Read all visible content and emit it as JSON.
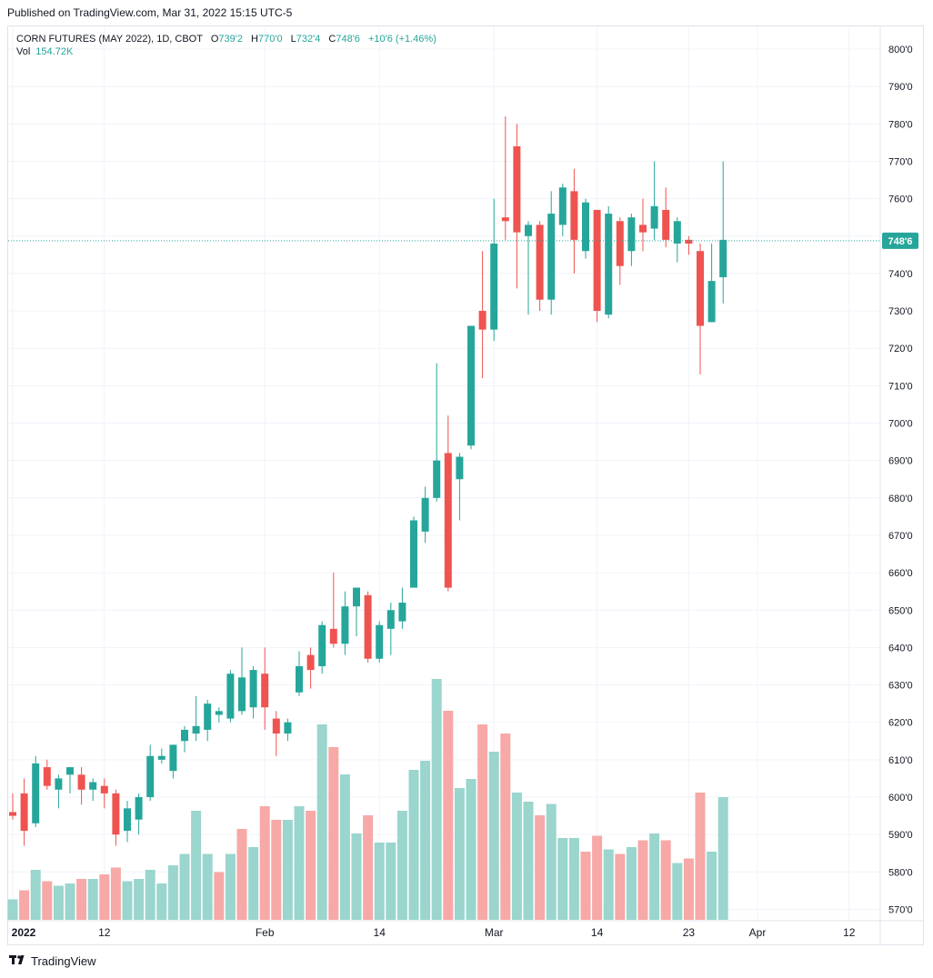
{
  "published": "Published on TradingView.com, Mar 31, 2022 15:15 UTC-5",
  "legend": {
    "symbol": "CORN FUTURES (MAY 2022), 1D, CBOT",
    "o_label": "O",
    "o_value": "739'2",
    "h_label": "H",
    "h_value": "770'0",
    "l_label": "L",
    "l_value": "732'4",
    "c_label": "C",
    "c_value": "748'6",
    "change": "+10'6 (+1.46%)",
    "vol_label": "Vol",
    "vol_value": "154.72K"
  },
  "footer": {
    "brand": "TradingView",
    "logo_icon": "tradingview-logo-icon"
  },
  "colors": {
    "up": "#26a69a",
    "down": "#ef5350",
    "vol_up": "#9ad5ce",
    "vol_down": "#f6a9a7",
    "grid": "#f0f3fa",
    "last": "#26a69a"
  },
  "chart_data": {
    "type": "candlestick",
    "y_unit": "cents/bushel",
    "ylim": [
      565,
      805
    ],
    "y_ticks": [
      {
        "v": 570,
        "label": "570'0"
      },
      {
        "v": 580,
        "label": "580'0"
      },
      {
        "v": 590,
        "label": "590'0"
      },
      {
        "v": 600,
        "label": "600'0"
      },
      {
        "v": 610,
        "label": "610'0"
      },
      {
        "v": 620,
        "label": "620'0"
      },
      {
        "v": 630,
        "label": "630'0"
      },
      {
        "v": 640,
        "label": "640'0"
      },
      {
        "v": 650,
        "label": "650'0"
      },
      {
        "v": 660,
        "label": "660'0"
      },
      {
        "v": 670,
        "label": "670'0"
      },
      {
        "v": 680,
        "label": "680'0"
      },
      {
        "v": 690,
        "label": "690'0"
      },
      {
        "v": 700,
        "label": "700'0"
      },
      {
        "v": 710,
        "label": "710'0"
      },
      {
        "v": 720,
        "label": "720'0"
      },
      {
        "v": 730,
        "label": "730'0"
      },
      {
        "v": 740,
        "label": "740'0"
      },
      {
        "v": 750,
        "label": "750'0"
      },
      {
        "v": 760,
        "label": "760'0"
      },
      {
        "v": 770,
        "label": "770'0"
      },
      {
        "v": 780,
        "label": "780'0"
      },
      {
        "v": 790,
        "label": "790'0"
      },
      {
        "v": 800,
        "label": "800'0"
      }
    ],
    "x_ticks": [
      {
        "i": 0,
        "label": "2022",
        "bold": true
      },
      {
        "i": 8,
        "label": "12"
      },
      {
        "i": 22,
        "label": "Feb"
      },
      {
        "i": 32,
        "label": "14"
      },
      {
        "i": 42,
        "label": "Mar"
      },
      {
        "i": 51,
        "label": "14"
      },
      {
        "i": 59,
        "label": "23"
      },
      {
        "i": 65,
        "label": "Apr"
      },
      {
        "i": 73,
        "label": "12"
      }
    ],
    "last_price": 748.75,
    "last_price_label": "748'6",
    "candles": [
      {
        "o": 596,
        "h": 601,
        "l": 594,
        "c": 595
      },
      {
        "o": 601,
        "h": 605,
        "l": 587,
        "c": 591
      },
      {
        "o": 593,
        "h": 611,
        "l": 592,
        "c": 609
      },
      {
        "o": 608,
        "h": 610,
        "l": 602,
        "c": 603
      },
      {
        "o": 602,
        "h": 606,
        "l": 597,
        "c": 605
      },
      {
        "o": 606,
        "h": 608,
        "l": 601,
        "c": 608
      },
      {
        "o": 606,
        "h": 608,
        "l": 598,
        "c": 602
      },
      {
        "o": 602,
        "h": 605,
        "l": 599,
        "c": 604
      },
      {
        "o": 603,
        "h": 605,
        "l": 597,
        "c": 601
      },
      {
        "o": 601,
        "h": 602,
        "l": 587,
        "c": 590
      },
      {
        "o": 591,
        "h": 599,
        "l": 588,
        "c": 597
      },
      {
        "o": 594,
        "h": 601,
        "l": 590,
        "c": 600
      },
      {
        "o": 600,
        "h": 614,
        "l": 599,
        "c": 611
      },
      {
        "o": 610,
        "h": 613,
        "l": 609,
        "c": 611
      },
      {
        "o": 607,
        "h": 614,
        "l": 605,
        "c": 614
      },
      {
        "o": 615,
        "h": 619,
        "l": 612,
        "c": 618
      },
      {
        "o": 617,
        "h": 627,
        "l": 615,
        "c": 619
      },
      {
        "o": 618,
        "h": 626,
        "l": 615,
        "c": 625
      },
      {
        "o": 622,
        "h": 624,
        "l": 620,
        "c": 623
      },
      {
        "o": 621,
        "h": 634,
        "l": 620,
        "c": 633
      },
      {
        "o": 623,
        "h": 640,
        "l": 622,
        "c": 632
      },
      {
        "o": 624,
        "h": 635,
        "l": 621,
        "c": 634
      },
      {
        "o": 633,
        "h": 640,
        "l": 618,
        "c": 624
      },
      {
        "o": 621,
        "h": 623,
        "l": 611,
        "c": 617
      },
      {
        "o": 617,
        "h": 621,
        "l": 615,
        "c": 620
      },
      {
        "o": 628,
        "h": 639,
        "l": 627,
        "c": 635
      },
      {
        "o": 638,
        "h": 640,
        "l": 629,
        "c": 634
      },
      {
        "o": 635,
        "h": 647,
        "l": 633,
        "c": 646
      },
      {
        "o": 645,
        "h": 660,
        "l": 640,
        "c": 641
      },
      {
        "o": 641,
        "h": 655,
        "l": 638,
        "c": 651
      },
      {
        "o": 651,
        "h": 656,
        "l": 643,
        "c": 656
      },
      {
        "o": 654,
        "h": 655,
        "l": 636,
        "c": 637
      },
      {
        "o": 637,
        "h": 647,
        "l": 636,
        "c": 646
      },
      {
        "o": 645,
        "h": 652,
        "l": 638,
        "c": 650
      },
      {
        "o": 647,
        "h": 656,
        "l": 645,
        "c": 652
      },
      {
        "o": 656,
        "h": 675,
        "l": 656,
        "c": 674
      },
      {
        "o": 671,
        "h": 683,
        "l": 668,
        "c": 680
      },
      {
        "o": 680,
        "h": 716,
        "l": 679,
        "c": 690
      },
      {
        "o": 692,
        "h": 702,
        "l": 655,
        "c": 656
      },
      {
        "o": 685,
        "h": 692,
        "l": 674,
        "c": 691
      },
      {
        "o": 694,
        "h": 726,
        "l": 693,
        "c": 726
      },
      {
        "o": 730,
        "h": 746,
        "l": 712,
        "c": 725
      },
      {
        "o": 725,
        "h": 760,
        "l": 722,
        "c": 748
      },
      {
        "o": 755,
        "h": 782,
        "l": 749,
        "c": 754
      },
      {
        "o": 774,
        "h": 780,
        "l": 736,
        "c": 751
      },
      {
        "o": 750,
        "h": 754,
        "l": 729,
        "c": 753
      },
      {
        "o": 753,
        "h": 754,
        "l": 730,
        "c": 733
      },
      {
        "o": 733,
        "h": 762,
        "l": 729,
        "c": 756
      },
      {
        "o": 753,
        "h": 764,
        "l": 750,
        "c": 763
      },
      {
        "o": 762,
        "h": 768,
        "l": 740,
        "c": 749
      },
      {
        "o": 746,
        "h": 760,
        "l": 744,
        "c": 759
      },
      {
        "o": 757,
        "h": 757,
        "l": 727,
        "c": 730
      },
      {
        "o": 729,
        "h": 758,
        "l": 728,
        "c": 756
      },
      {
        "o": 754,
        "h": 755,
        "l": 737,
        "c": 742
      },
      {
        "o": 746,
        "h": 756,
        "l": 742,
        "c": 755
      },
      {
        "o": 753,
        "h": 760,
        "l": 746,
        "c": 751
      },
      {
        "o": 752,
        "h": 770,
        "l": 749,
        "c": 758
      },
      {
        "o": 757,
        "h": 763,
        "l": 747,
        "c": 749
      },
      {
        "o": 748,
        "h": 755,
        "l": 743,
        "c": 754
      },
      {
        "o": 749,
        "h": 750,
        "l": 745,
        "c": 748
      },
      {
        "o": 746,
        "h": 748,
        "l": 713,
        "c": 726
      },
      {
        "o": 727,
        "h": 748,
        "l": 727,
        "c": 738
      },
      {
        "o": 739,
        "h": 770,
        "l": 732,
        "c": 749
      }
    ],
    "volume_scale_max": 62,
    "volume": [
      {
        "v": 4.5,
        "up": true
      },
      {
        "v": 6.5,
        "up": false
      },
      {
        "v": 11,
        "up": true
      },
      {
        "v": 8.5,
        "up": false
      },
      {
        "v": 7.5,
        "up": true
      },
      {
        "v": 8,
        "up": true
      },
      {
        "v": 9,
        "up": false
      },
      {
        "v": 9,
        "up": true
      },
      {
        "v": 10,
        "up": false
      },
      {
        "v": 11.5,
        "up": false
      },
      {
        "v": 8.5,
        "up": true
      },
      {
        "v": 9,
        "up": true
      },
      {
        "v": 11,
        "up": true
      },
      {
        "v": 8,
        "up": true
      },
      {
        "v": 12,
        "up": true
      },
      {
        "v": 14.5,
        "up": true
      },
      {
        "v": 24,
        "up": true
      },
      {
        "v": 14.5,
        "up": true
      },
      {
        "v": 10.5,
        "up": false
      },
      {
        "v": 14.5,
        "up": true
      },
      {
        "v": 20,
        "up": false
      },
      {
        "v": 16,
        "up": true
      },
      {
        "v": 25,
        "up": false
      },
      {
        "v": 22,
        "up": false
      },
      {
        "v": 22,
        "up": true
      },
      {
        "v": 25,
        "up": true
      },
      {
        "v": 24,
        "up": false
      },
      {
        "v": 43,
        "up": true
      },
      {
        "v": 38,
        "up": false
      },
      {
        "v": 32,
        "up": true
      },
      {
        "v": 19,
        "up": true
      },
      {
        "v": 23,
        "up": false
      },
      {
        "v": 17,
        "up": true
      },
      {
        "v": 17,
        "up": true
      },
      {
        "v": 24,
        "up": true
      },
      {
        "v": 33,
        "up": true
      },
      {
        "v": 35,
        "up": true
      },
      {
        "v": 53,
        "up": true
      },
      {
        "v": 46,
        "up": false
      },
      {
        "v": 29,
        "up": true
      },
      {
        "v": 31,
        "up": true
      },
      {
        "v": 43,
        "up": false
      },
      {
        "v": 37,
        "up": true
      },
      {
        "v": 41,
        "up": false
      },
      {
        "v": 28,
        "up": true
      },
      {
        "v": 26,
        "up": true
      },
      {
        "v": 23,
        "up": false
      },
      {
        "v": 25.5,
        "up": true
      },
      {
        "v": 18,
        "up": true
      },
      {
        "v": 18,
        "up": true
      },
      {
        "v": 15,
        "up": false
      },
      {
        "v": 18.5,
        "up": false
      },
      {
        "v": 15.5,
        "up": true
      },
      {
        "v": 14.5,
        "up": false
      },
      {
        "v": 16,
        "up": true
      },
      {
        "v": 17.5,
        "up": false
      },
      {
        "v": 19,
        "up": true
      },
      {
        "v": 17.5,
        "up": false
      },
      {
        "v": 12.5,
        "up": true
      },
      {
        "v": 13.5,
        "up": false
      },
      {
        "v": 28,
        "up": false
      },
      {
        "v": 15,
        "up": true
      },
      {
        "v": 27,
        "up": true
      }
    ]
  }
}
